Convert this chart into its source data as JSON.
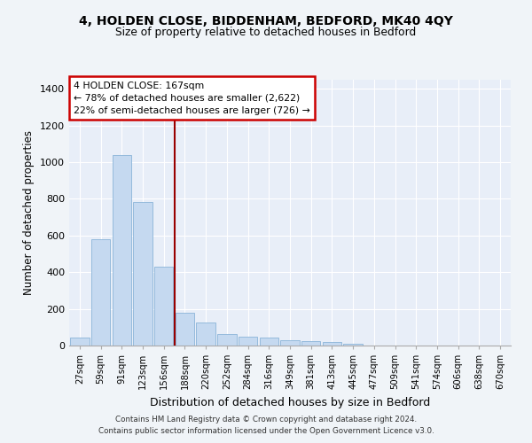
{
  "title1": "4, HOLDEN CLOSE, BIDDENHAM, BEDFORD, MK40 4QY",
  "title2": "Size of property relative to detached houses in Bedford",
  "xlabel": "Distribution of detached houses by size in Bedford",
  "ylabel": "Number of detached properties",
  "categories": [
    "27sqm",
    "59sqm",
    "91sqm",
    "123sqm",
    "156sqm",
    "188sqm",
    "220sqm",
    "252sqm",
    "284sqm",
    "316sqm",
    "349sqm",
    "381sqm",
    "413sqm",
    "445sqm",
    "477sqm",
    "509sqm",
    "541sqm",
    "574sqm",
    "606sqm",
    "638sqm",
    "670sqm"
  ],
  "values": [
    45,
    578,
    1040,
    785,
    430,
    178,
    128,
    63,
    50,
    45,
    28,
    26,
    20,
    12,
    0,
    0,
    0,
    0,
    0,
    0,
    0
  ],
  "bar_color": "#c5d9f0",
  "bar_edge_color": "#8ab4d8",
  "background_color": "#e8eef8",
  "grid_color": "#ffffff",
  "annotation_line1": "4 HOLDEN CLOSE: 167sqm",
  "annotation_line2": "← 78% of detached houses are smaller (2,622)",
  "annotation_line3": "22% of semi-detached houses are larger (726) →",
  "vline_x_index": 4.5,
  "vline_color": "#990000",
  "annotation_box_facecolor": "#ffffff",
  "annotation_box_edgecolor": "#cc0000",
  "ylim": [
    0,
    1450
  ],
  "yticks": [
    0,
    200,
    400,
    600,
    800,
    1000,
    1200,
    1400
  ],
  "footer1": "Contains HM Land Registry data © Crown copyright and database right 2024.",
  "footer2": "Contains public sector information licensed under the Open Government Licence v3.0."
}
